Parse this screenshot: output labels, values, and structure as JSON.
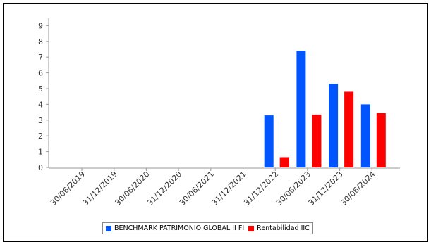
{
  "chart_data": {
    "type": "bar",
    "title": "",
    "xlabel": "",
    "ylabel": "",
    "ylim": [
      0,
      9
    ],
    "y_ticks": [
      "0",
      "1",
      "2",
      "3",
      "4",
      "5",
      "6",
      "7",
      "8",
      "9"
    ],
    "grid": false,
    "legend_position": "bottom",
    "categories": [
      "30/06/2019",
      "31/12/2019",
      "30/06/2020",
      "31/12/2020",
      "30/06/2021",
      "31/12/2021",
      "31/12/2022",
      "30/06/2023",
      "31/12/2023",
      "30/06/2024"
    ],
    "series": [
      {
        "name": "BENCHMARK PATRIMONIO GLOBAL II FI",
        "color": "#0055ff",
        "values": [
          null,
          null,
          null,
          null,
          null,
          null,
          3.3,
          7.4,
          5.3,
          4.0
        ]
      },
      {
        "name": "Rentabilidad IIC",
        "color": "#ff0000",
        "values": [
          null,
          null,
          null,
          null,
          null,
          null,
          0.65,
          3.35,
          4.8,
          3.45
        ]
      }
    ]
  }
}
